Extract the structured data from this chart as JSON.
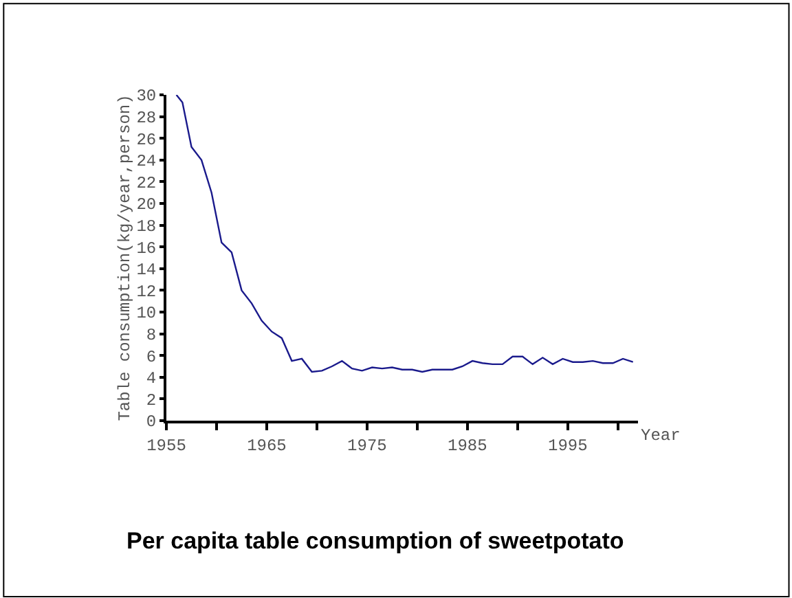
{
  "chart_data": {
    "type": "line",
    "title": "Per capita table consumption of sweetpotato",
    "xlabel": "Year",
    "ylabel": "Table consumption(kg/year,person)",
    "x": [
      1956.0,
      1956.6,
      1957.5,
      1958.5,
      1959.5,
      1960.5,
      1961.5,
      1962.5,
      1963.5,
      1964.5,
      1965.5,
      1966.5,
      1967.5,
      1968.5,
      1969.5,
      1970.5,
      1971.5,
      1972.5,
      1973.5,
      1974.5,
      1975.5,
      1976.5,
      1977.5,
      1978.5,
      1979.5,
      1980.5,
      1981.5,
      1982.5,
      1983.5,
      1984.5,
      1985.5,
      1986.5,
      1987.5,
      1988.5,
      1989.5,
      1990.5,
      1991.5,
      1992.5,
      1993.5,
      1994.5,
      1995.5,
      1996.5,
      1997.5,
      1998.5,
      1999.5,
      2000.5,
      2001.5
    ],
    "series": [
      {
        "color": "#1a1a8c",
        "values": [
          30,
          29.3,
          25.2,
          24.0,
          21.0,
          16.4,
          15.5,
          12.0,
          10.8,
          9.2,
          8.2,
          7.6,
          5.5,
          5.7,
          4.5,
          4.6,
          5.0,
          5.5,
          4.8,
          4.6,
          4.9,
          4.8,
          4.9,
          4.7,
          4.7,
          4.5,
          4.7,
          4.7,
          4.7,
          5.0,
          5.5,
          5.3,
          5.2,
          5.2,
          5.9,
          5.9,
          5.2,
          5.8,
          5.2,
          5.7,
          5.4,
          5.4,
          5.5,
          5.3,
          5.3,
          5.7,
          5.4
        ]
      }
    ],
    "xlim": [
      1955,
      2002
    ],
    "xticks": [
      1955,
      {
        "value": 1960,
        "label": null
      },
      1965,
      {
        "value": 1970,
        "label": null
      },
      1975,
      {
        "value": 1980,
        "label": null
      },
      1985,
      {
        "value": 1990,
        "label": null
      },
      1995,
      {
        "value": 2000,
        "label": null
      }
    ],
    "ylim": [
      0,
      30
    ],
    "yticks": [
      0,
      2,
      4,
      6,
      8,
      10,
      12,
      14,
      16,
      18,
      20,
      22,
      24,
      26,
      28,
      30
    ],
    "line_style": "solid"
  }
}
